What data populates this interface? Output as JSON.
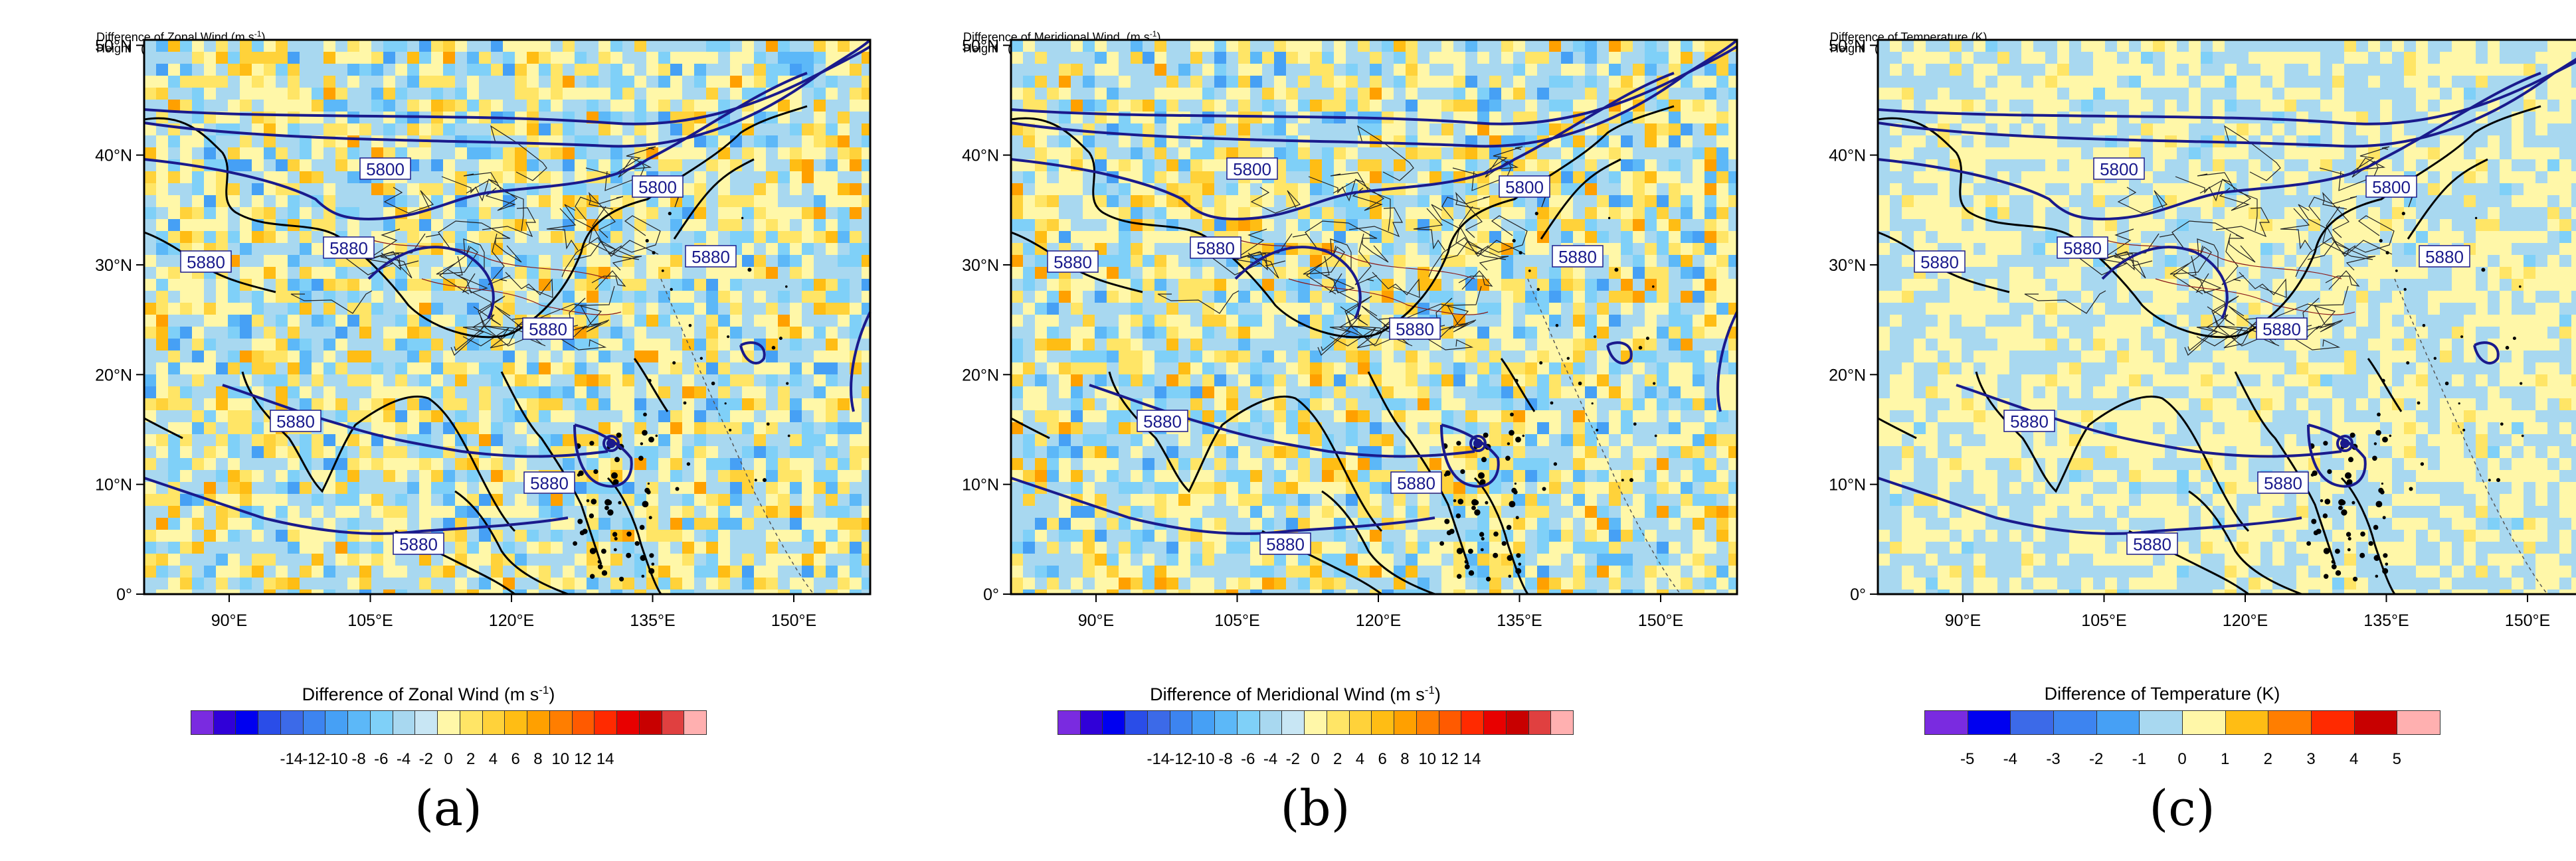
{
  "contour_label": "Height (m) at 500 hPa",
  "contour_values": [
    "5800",
    "5880"
  ],
  "latitudes": [
    "0°",
    "10°N",
    "20°N",
    "30°N",
    "40°N",
    "50°N"
  ],
  "longitudes": [
    "90°E",
    "105°E",
    "120°E",
    "135°E",
    "150°E"
  ],
  "colors": {
    "contour": "#1a1a8c",
    "coast": "#000000",
    "neg": [
      "#7a2be0",
      "#3000d8",
      "#0000f0",
      "#2a4de8",
      "#3c6ae8",
      "#3d84f0",
      "#46a0f5",
      "#5cb8f8",
      "#7fd0f8",
      "#a8d8f0",
      "#c8e6f4"
    ],
    "pos": [
      "#fff7a8",
      "#ffe566",
      "#ffd23a",
      "#ffbd14",
      "#ffa000",
      "#ff7e00",
      "#ff5a00",
      "#ff2a00",
      "#e80000",
      "#c80000",
      "#e04040",
      "#ffb0b0"
    ]
  },
  "panels": [
    {
      "id": "a",
      "header_line1": "Difference of Zonal Wind (m s",
      "header_sup": "-1",
      "header_line1_end": ")",
      "header_line2": "Height   (m)     at   500 hPa",
      "colorbar_title": "Difference of Zonal Wind (m s",
      "colorbar_title_sup": "-1",
      "colorbar_title_end": ")",
      "colorbar_labels": [
        "-14",
        "-12",
        "-10",
        "-8",
        "-6",
        "-4",
        "-2",
        "0",
        "2",
        "4",
        "6",
        "8",
        "10",
        "12",
        "14"
      ],
      "label": "(a)",
      "variable": "zonal"
    },
    {
      "id": "b",
      "header_line1": "Difference of Meridional Wind  (m s",
      "header_sup": "-1",
      "header_line1_end": ")",
      "header_line2": "Height   (m)     at   500 hPa",
      "colorbar_title": "Difference of Meridional Wind  (m s",
      "colorbar_title_sup": "-1",
      "colorbar_title_end": ")",
      "colorbar_labels": [
        "-14",
        "-12",
        "-10",
        "-8",
        "-6",
        "-4",
        "-2",
        "0",
        "2",
        "4",
        "6",
        "8",
        "10",
        "12",
        "14"
      ],
      "label": "(b)",
      "variable": "meridional"
    },
    {
      "id": "c",
      "header_line1": "Difference of Temperature (K)",
      "header_sup": "",
      "header_line1_end": "",
      "header_line2": "Height   (m)     at   500 hPa",
      "colorbar_title": "Difference of Temperature (K)",
      "colorbar_title_sup": "",
      "colorbar_title_end": "",
      "colorbar_labels": [
        "-5",
        "-4",
        "-3",
        "-2",
        "-1",
        "0",
        "1",
        "2",
        "3",
        "4",
        "5"
      ],
      "label": "(c)",
      "variable": "temperature"
    }
  ]
}
